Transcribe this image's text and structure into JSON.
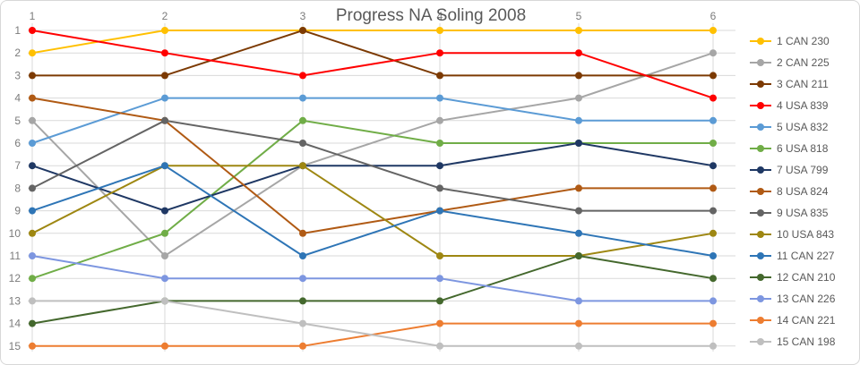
{
  "title": "Progress NA Soling 2008",
  "colors": {
    "title_text": "#595959",
    "axis_text": "#7b7b7b",
    "legend_text": "#595959",
    "gridline": "#d9d9d9"
  },
  "chart_data": {
    "type": "line",
    "title": "Progress NA Soling 2008",
    "x_tick_labels": [
      "1",
      "2",
      "3",
      "4",
      "5",
      "6"
    ],
    "y_tick_labels": [
      "1",
      "2",
      "3",
      "4",
      "5",
      "6",
      "7",
      "8",
      "9",
      "10",
      "11",
      "12",
      "13",
      "14",
      "15"
    ],
    "x_axis_position": "top",
    "y_axis_inverted": true,
    "ylim": [
      1,
      15
    ],
    "grid": "both",
    "legend_position": "right",
    "series": [
      {
        "name": "1 CAN 230",
        "color": "#FFC000",
        "values": [
          2,
          1,
          1,
          1,
          1,
          1
        ]
      },
      {
        "name": "2 CAN 225",
        "color": "#A6A6A6",
        "values": [
          5,
          11,
          7,
          5,
          4,
          2
        ]
      },
      {
        "name": "3 CAN 211",
        "color": "#7C3A03",
        "values": [
          3,
          3,
          1,
          3,
          3,
          3
        ]
      },
      {
        "name": "4 USA 839",
        "color": "#FF0000",
        "values": [
          1,
          2,
          3,
          2,
          2,
          4
        ]
      },
      {
        "name": "5 USA 832",
        "color": "#5B9BD5",
        "values": [
          6,
          4,
          4,
          4,
          5,
          5
        ]
      },
      {
        "name": "6 USA 818",
        "color": "#70AD47",
        "values": [
          12,
          10,
          5,
          6,
          6,
          6
        ]
      },
      {
        "name": "7 USA 799",
        "color": "#1F3864",
        "values": [
          7,
          9,
          7,
          7,
          6,
          7
        ]
      },
      {
        "name": "8 USA 824",
        "color": "#B05A14",
        "values": [
          4,
          5,
          10,
          9,
          8,
          8
        ]
      },
      {
        "name": "9 USA 835",
        "color": "#646464",
        "values": [
          8,
          5,
          6,
          8,
          9,
          9
        ]
      },
      {
        "name": "10 USA 843",
        "color": "#9E8712",
        "values": [
          10,
          7,
          7,
          11,
          11,
          10
        ]
      },
      {
        "name": "11 CAN 227",
        "color": "#2E75B6",
        "values": [
          9,
          7,
          11,
          9,
          10,
          11
        ]
      },
      {
        "name": "12 CAN 210",
        "color": "#44682D",
        "values": [
          14,
          13,
          13,
          13,
          11,
          12
        ]
      },
      {
        "name": "13 CAN 226",
        "color": "#7D96E0",
        "values": [
          11,
          12,
          12,
          12,
          13,
          13
        ]
      },
      {
        "name": "14 CAN 221",
        "color": "#ED7D31",
        "values": [
          15,
          15,
          15,
          14,
          14,
          14
        ]
      },
      {
        "name": "15 CAN 198",
        "color": "#BFBFBF",
        "values": [
          13,
          13,
          14,
          15,
          15,
          15
        ]
      }
    ]
  }
}
